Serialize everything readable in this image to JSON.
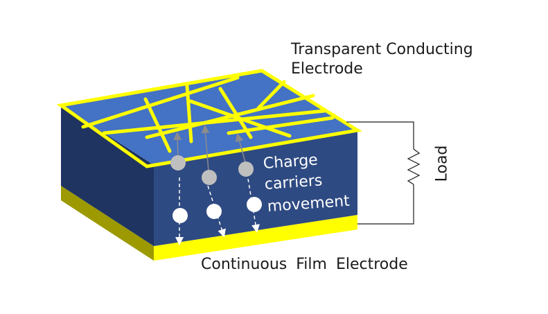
{
  "labels": {
    "top_electrode_line1": "Transparent Conducting",
    "top_electrode_line2": "Electrode",
    "charge_line1": "Charge",
    "charge_line2": "carriers",
    "charge_line3": "movement",
    "load": "Load",
    "bottom_electrode": "Continuous Film Electrode"
  },
  "colors": {
    "top_face": "#4472c4",
    "front_face": "#2e4a82",
    "side_face": "#1f3461",
    "electrode_yellow": "#ffff00",
    "bottom_side": "#9c9a00",
    "carrier_gray": "#bfbfbf",
    "carrier_white": "#ffffff"
  },
  "icons": {
    "load": "resistor-zigzag-icon",
    "carrier": "circle-particle-icon"
  }
}
